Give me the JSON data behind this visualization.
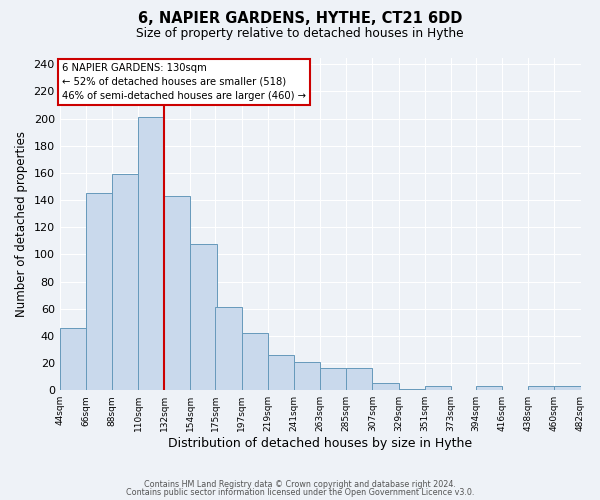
{
  "title": "6, NAPIER GARDENS, HYTHE, CT21 6DD",
  "subtitle": "Size of property relative to detached houses in Hythe",
  "xlabel": "Distribution of detached houses by size in Hythe",
  "ylabel": "Number of detached properties",
  "bar_left_edges": [
    44,
    66,
    88,
    110,
    132,
    154,
    175,
    197,
    219,
    241,
    263,
    285,
    307,
    329,
    351,
    373,
    394,
    416,
    438,
    460
  ],
  "bar_heights": [
    46,
    145,
    159,
    201,
    143,
    108,
    61,
    42,
    26,
    21,
    16,
    16,
    5,
    1,
    3,
    0,
    3,
    0,
    3,
    3
  ],
  "tick_labels": [
    "44sqm",
    "66sqm",
    "88sqm",
    "110sqm",
    "132sqm",
    "154sqm",
    "175sqm",
    "197sqm",
    "219sqm",
    "241sqm",
    "263sqm",
    "285sqm",
    "307sqm",
    "329sqm",
    "351sqm",
    "373sqm",
    "394sqm",
    "416sqm",
    "438sqm",
    "460sqm",
    "482sqm"
  ],
  "bar_color": "#c9d9ec",
  "bar_edge_color": "#6699bb",
  "vline_x": 132,
  "vline_color": "#cc0000",
  "annotation_text": "6 NAPIER GARDENS: 130sqm\n← 52% of detached houses are smaller (518)\n46% of semi-detached houses are larger (460) →",
  "annotation_box_color": "#ffffff",
  "annotation_box_edge": "#cc0000",
  "ylim": [
    0,
    245
  ],
  "yticks": [
    0,
    20,
    40,
    60,
    80,
    100,
    120,
    140,
    160,
    180,
    200,
    220,
    240
  ],
  "footer1": "Contains HM Land Registry data © Crown copyright and database right 2024.",
  "footer2": "Contains public sector information licensed under the Open Government Licence v3.0.",
  "background_color": "#eef2f7",
  "grid_color": "#ffffff",
  "bin_width": 22
}
